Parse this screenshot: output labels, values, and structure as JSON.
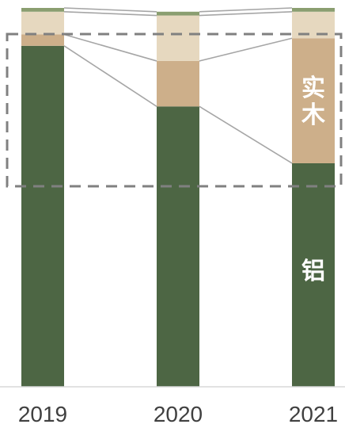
{
  "chart_data": {
    "type": "bar",
    "stacked": true,
    "categories": [
      "2019",
      "2020",
      "2021"
    ],
    "ylim": [
      0,
      100
    ],
    "grid": false,
    "legend": "none",
    "series": [
      {
        "name": "铝",
        "color": "#4d6644",
        "values": [
          90,
          74,
          59
        ]
      },
      {
        "name": "实木",
        "color": "#cdaf8a",
        "values": [
          3,
          12,
          33
        ]
      },
      {
        "name": "",
        "color": "#e6d8bf",
        "values": [
          6,
          12,
          7
        ]
      },
      {
        "name": "",
        "color": "#8a9e70",
        "values": [
          1,
          1,
          1
        ]
      }
    ],
    "callout_box": {
      "style": "dashed",
      "color": "#808080"
    },
    "connector_color": "#a6a6a6"
  }
}
